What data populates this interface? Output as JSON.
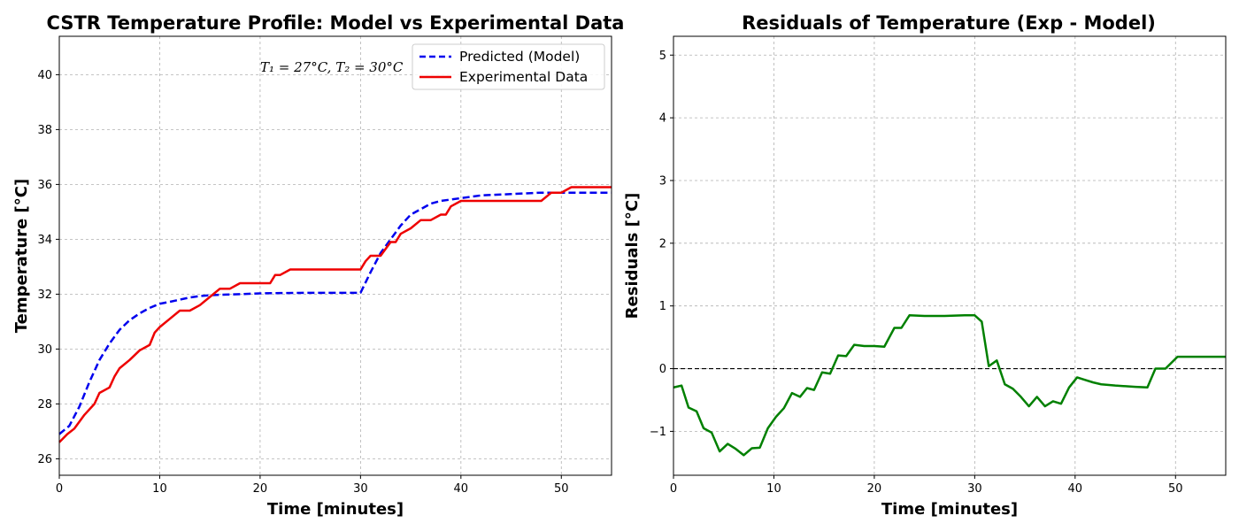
{
  "chart_data": [
    {
      "type": "line",
      "title": "CSTR Temperature Profile: Model vs Experimental Data",
      "xlabel": "Time [minutes]",
      "ylabel": "Temperature [°C]",
      "xlim": [
        0,
        55
      ],
      "ylim": [
        25.4,
        41.4
      ],
      "xticks": [
        0,
        10,
        20,
        30,
        40,
        50
      ],
      "yticks": [
        26,
        28,
        30,
        32,
        34,
        36,
        38,
        40
      ],
      "grid": true,
      "legend_position": "top-right",
      "annotation": "T₁ = 27°C, T₂ = 30°C",
      "series": [
        {
          "name": "Predicted (Model)",
          "color": "#0000ee",
          "style": "dashed",
          "x": [
            0,
            1,
            2,
            3,
            4,
            5,
            6,
            7,
            8,
            9,
            10,
            11,
            12,
            13,
            14,
            15,
            16,
            18,
            20,
            22,
            25,
            28,
            30,
            31,
            32,
            33,
            34,
            35,
            36,
            37,
            38,
            40,
            42,
            45,
            48,
            50,
            55
          ],
          "y": [
            26.9,
            27.2,
            27.9,
            28.8,
            29.6,
            30.2,
            30.7,
            31.05,
            31.3,
            31.5,
            31.65,
            31.72,
            31.8,
            31.88,
            31.93,
            31.96,
            31.98,
            32.0,
            32.03,
            32.04,
            32.05,
            32.05,
            32.05,
            32.8,
            33.5,
            34.0,
            34.5,
            34.9,
            35.1,
            35.3,
            35.4,
            35.5,
            35.6,
            35.65,
            35.7,
            35.7,
            35.7
          ]
        },
        {
          "name": "Experimental Data",
          "color": "#ee0000",
          "style": "solid",
          "x": [
            0,
            0.8,
            1.5,
            2.5,
            3.5,
            4,
            5,
            5.5,
            6,
            7,
            8,
            9,
            9.5,
            10,
            11,
            12,
            13,
            14,
            15,
            16,
            17,
            18,
            19,
            20,
            21,
            21.5,
            22,
            23,
            23.5,
            24,
            25,
            26,
            27,
            28,
            29,
            30,
            30.5,
            31,
            32,
            33,
            33.5,
            34,
            35,
            36,
            37,
            38,
            38.5,
            39,
            40,
            41,
            42,
            43,
            44,
            45,
            46,
            47,
            48,
            49,
            50,
            51,
            52,
            53,
            54,
            55
          ],
          "y": [
            26.6,
            26.9,
            27.1,
            27.6,
            28.0,
            28.4,
            28.6,
            29.0,
            29.3,
            29.6,
            29.95,
            30.15,
            30.6,
            30.8,
            31.1,
            31.4,
            31.4,
            31.6,
            31.9,
            32.2,
            32.2,
            32.4,
            32.4,
            32.4,
            32.4,
            32.7,
            32.7,
            32.9,
            32.9,
            32.9,
            32.9,
            32.9,
            32.9,
            32.9,
            32.9,
            32.9,
            33.2,
            33.4,
            33.4,
            33.9,
            33.9,
            34.2,
            34.4,
            34.7,
            34.7,
            34.9,
            34.9,
            35.2,
            35.4,
            35.4,
            35.4,
            35.4,
            35.4,
            35.4,
            35.4,
            35.4,
            35.4,
            35.7,
            35.7,
            35.9,
            35.9,
            35.9,
            35.9,
            35.9
          ]
        }
      ]
    },
    {
      "type": "line",
      "title": "Residuals of Temperature (Exp - Model)",
      "xlabel": "Time [minutes]",
      "ylabel": "Residuals [°C]",
      "xlim": [
        0,
        55
      ],
      "ylim": [
        -1.7,
        5.3
      ],
      "xticks": [
        0,
        10,
        20,
        30,
        40,
        50
      ],
      "yticks": [
        -1,
        0,
        1,
        2,
        3,
        4,
        5
      ],
      "ytick_labels": [
        "−1",
        "0",
        "1",
        "2",
        "3",
        "4",
        "5"
      ],
      "grid": true,
      "zero_line": true,
      "series": [
        {
          "color": "#008000",
          "style": "solid",
          "x": [
            0,
            0.8,
            1.5,
            2.3,
            3,
            3.8,
            4.6,
            5.4,
            6.2,
            7,
            7.8,
            8.6,
            9.4,
            10.2,
            11,
            11.8,
            12.6,
            13.3,
            14,
            14.8,
            15.6,
            16.4,
            17.2,
            18,
            19,
            20,
            21,
            22,
            22.7,
            23.5,
            25,
            27,
            29,
            30,
            30.7,
            31.4,
            32.2,
            33,
            33.8,
            34.6,
            35.4,
            36.2,
            37,
            37.8,
            38.6,
            39.4,
            40.2,
            41,
            41.8,
            42.6,
            44,
            46,
            47.2,
            48,
            49,
            50.2,
            52,
            55
          ],
          "y": [
            -0.3,
            -0.27,
            -0.62,
            -0.68,
            -0.95,
            -1.02,
            -1.32,
            -1.2,
            -1.28,
            -1.38,
            -1.27,
            -1.26,
            -0.95,
            -0.77,
            -0.63,
            -0.39,
            -0.45,
            -0.31,
            -0.34,
            -0.06,
            -0.08,
            0.21,
            0.2,
            0.38,
            0.36,
            0.36,
            0.35,
            0.65,
            0.65,
            0.85,
            0.84,
            0.84,
            0.85,
            0.85,
            0.75,
            0.04,
            0.13,
            -0.25,
            -0.32,
            -0.45,
            -0.6,
            -0.45,
            -0.6,
            -0.52,
            -0.56,
            -0.3,
            -0.14,
            -0.18,
            -0.22,
            -0.25,
            -0.27,
            -0.29,
            -0.3,
            0.0,
            0.0,
            0.19,
            0.19,
            0.19
          ]
        }
      ]
    }
  ]
}
